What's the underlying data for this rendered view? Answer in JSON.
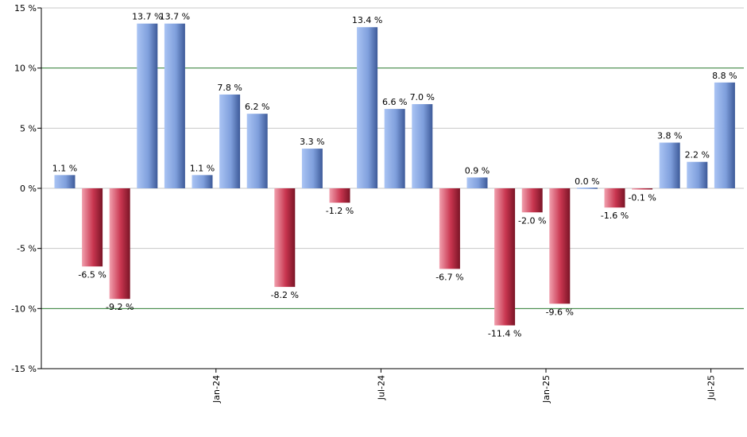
{
  "chart_data": {
    "type": "bar",
    "title": "",
    "xlabel": "",
    "ylabel": "",
    "ylim": [
      -15,
      15
    ],
    "y_ticks": [
      15,
      10,
      5,
      0,
      -5,
      -10,
      -15
    ],
    "y_tick_labels": [
      "15 %",
      "10 %",
      "5 %",
      "0 %",
      "-5 %",
      "-10 %",
      "-15 %"
    ],
    "x_tick_labels": [
      {
        "label": "Jan-24",
        "after_index": 5
      },
      {
        "label": "Jul-24",
        "after_index": 11
      },
      {
        "label": "Jan-25",
        "after_index": 17
      },
      {
        "label": "Jul-25",
        "after_index": 23
      }
    ],
    "values": [
      1.1,
      -6.5,
      -9.2,
      13.7,
      13.7,
      1.1,
      7.8,
      6.2,
      -8.2,
      3.3,
      -1.2,
      13.4,
      6.6,
      7.0,
      -6.7,
      0.9,
      -11.4,
      -2.0,
      -9.6,
      0.0,
      -1.6,
      -0.1,
      3.8,
      2.2,
      8.8
    ],
    "value_labels": [
      "1.1 %",
      "-6.5 %",
      "-9.2 %",
      "13.7 %",
      "13.7 %",
      "1.1 %",
      "7.8 %",
      "6.2 %",
      "-8.2 %",
      "3.3 %",
      "-1.2 %",
      "13.4 %",
      "6.6 %",
      "7.0 %",
      "-6.7 %",
      "0.9 %",
      "-11.4 %",
      "-2.0 %",
      "-9.6 %",
      "0.0 %",
      "-1.6 %",
      "-0.1 %",
      "3.8 %",
      "2.2 %",
      "8.8 %"
    ],
    "grid": true,
    "colors": {
      "positive": "#7a9ee0",
      "negative": "#c0304a",
      "gridline": "#c8c8c8",
      "gridline_major": "#2e7d32"
    }
  }
}
